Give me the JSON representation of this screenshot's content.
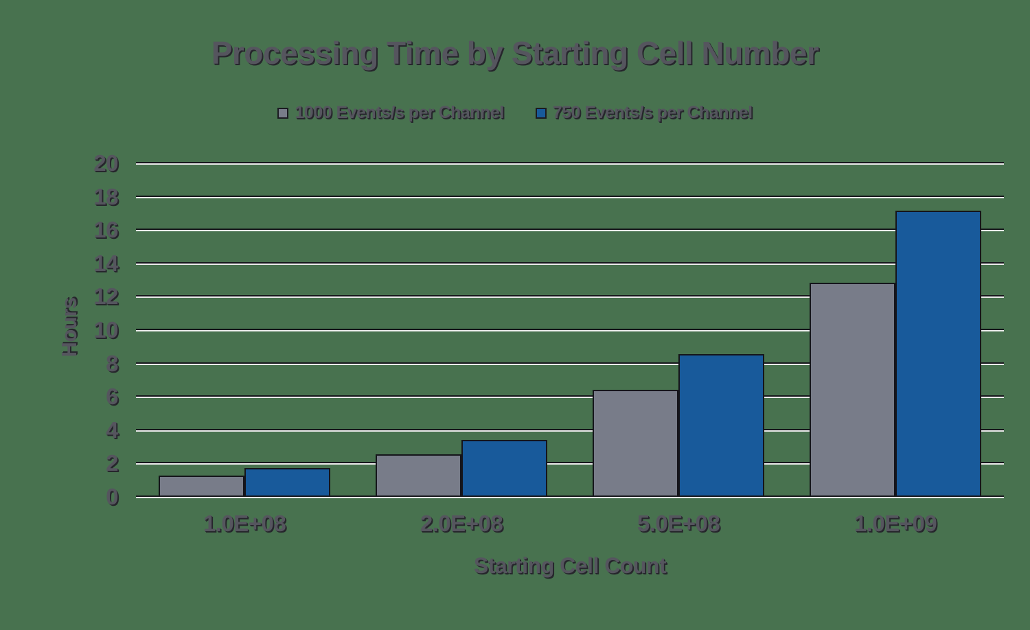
{
  "colors": {
    "background": "#48724f",
    "grid_light": "#ececec",
    "grid_dark": "#17171c",
    "text": "#55555e",
    "series_gray": "#787c89",
    "series_blue": "#185a9b"
  },
  "chart_data": {
    "type": "bar",
    "title": "Processing Time by Starting Cell Number",
    "xlabel": "Starting Cell Count",
    "ylabel": "Hours",
    "categories": [
      "1.0E+08",
      "2.0E+08",
      "5.0E+08",
      "1.0E+09"
    ],
    "series": [
      {
        "name": "1000 Events/s per Channel",
        "color": "#787c89",
        "values": [
          1.29,
          2.57,
          6.43,
          12.86
        ]
      },
      {
        "name": "750 Events/s per Channel",
        "color": "#185a9b",
        "values": [
          1.71,
          3.43,
          8.57,
          17.15
        ]
      }
    ],
    "ylim": [
      0,
      20
    ],
    "yticks": [
      0,
      2,
      4,
      6,
      8,
      10,
      12,
      14,
      16,
      18,
      20
    ],
    "grid": true,
    "legend_position": "top"
  }
}
